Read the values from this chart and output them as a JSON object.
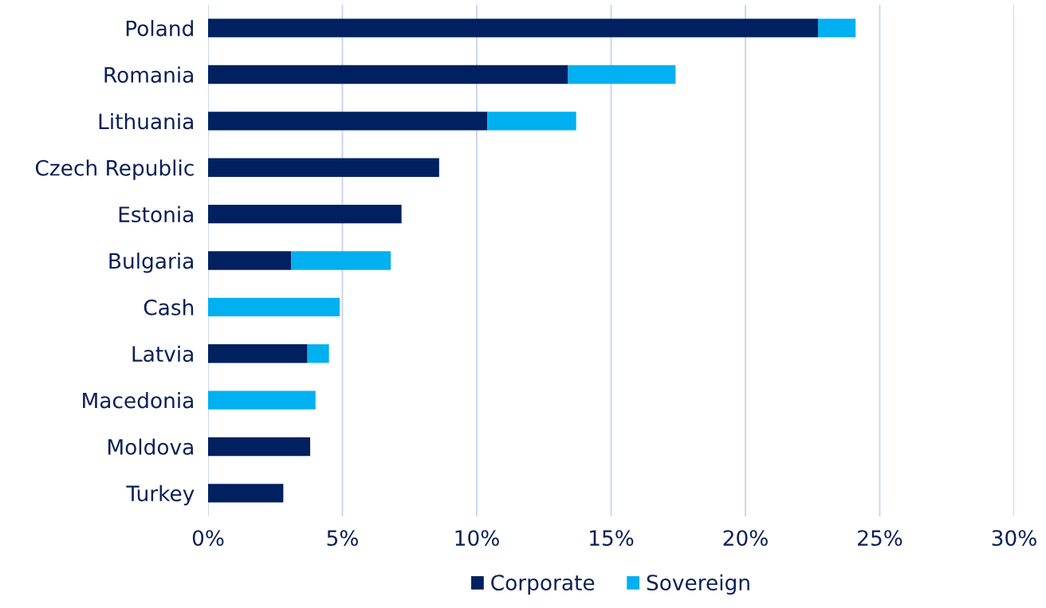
{
  "chart_data": {
    "type": "bar",
    "orientation": "horizontal",
    "stacked": true,
    "categories": [
      "Poland",
      "Romania",
      "Lithuania",
      "Czech Republic",
      "Estonia",
      "Bulgaria",
      "Cash",
      "Latvia",
      "Macedonia",
      "Moldova",
      "Turkey"
    ],
    "series": [
      {
        "name": "Corporate",
        "color": "#002060",
        "values": [
          22.7,
          13.4,
          10.4,
          8.6,
          7.2,
          3.1,
          0,
          3.7,
          0,
          3.8,
          2.8
        ]
      },
      {
        "name": "Sovereign",
        "color": "#00b0f0",
        "values": [
          1.4,
          4.0,
          3.3,
          0,
          0,
          3.7,
          4.9,
          0.8,
          4.0,
          0,
          0
        ]
      }
    ],
    "xlim": [
      0,
      30
    ],
    "xticks": [
      {
        "value": 0,
        "label": "0%"
      },
      {
        "value": 5,
        "label": "5%"
      },
      {
        "value": 10,
        "label": "10%"
      },
      {
        "value": 15,
        "label": "15%"
      },
      {
        "value": 20,
        "label": "20%"
      },
      {
        "value": 25,
        "label": "25%"
      },
      {
        "value": 30,
        "label": "30%"
      }
    ],
    "grid": "x",
    "legend": "bottom"
  }
}
